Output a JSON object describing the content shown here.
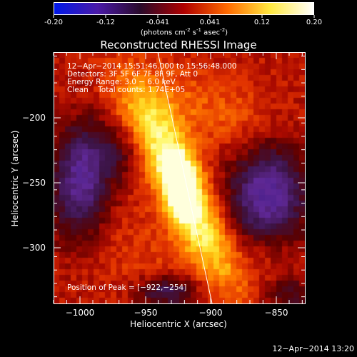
{
  "colorbar": {
    "ticks": [
      "-0.20",
      "-0.12",
      "-0.041",
      "0.041",
      "0.12",
      "0.20"
    ],
    "units_prefix": "(photons cm",
    "units_exp1": "-2",
    "units_mid": " s",
    "units_exp2": "-1",
    "units_mid2": " asec",
    "units_exp3": "-2",
    "units_suffix": ")",
    "colors": [
      "#0018e8",
      "#4a1aa8",
      "#2a0a2a",
      "#b00000",
      "#ff6a00",
      "#ffe840",
      "#ffffff"
    ]
  },
  "plot": {
    "title": "Reconstructed RHESSI Image",
    "xlabel": "Heliocentric X (arcsec)",
    "ylabel": "Heliocentric Y (arcsec)",
    "x_ticks": [
      "−1000",
      "−950",
      "−900",
      "−850"
    ],
    "y_ticks": [
      "−200",
      "−250",
      "−300"
    ],
    "xlim": [
      -1020,
      -828
    ],
    "ylim": [
      -345,
      -157
    ]
  },
  "annotations": {
    "line1": "12−Apr−2014 15:51:46.000 to 15:56:48.000",
    "line2": "Detectors: 3F 5F 6F 7F 8F 9F, Att 0",
    "line3": "Energy Range: 3.0 − 6.0 keV",
    "line4": "Clean    Total counts: 1.74E+05",
    "peak": "Position of Peak = [−922,−254]"
  },
  "footer": {
    "timestamp": "12−Apr−2014 13:20"
  }
}
